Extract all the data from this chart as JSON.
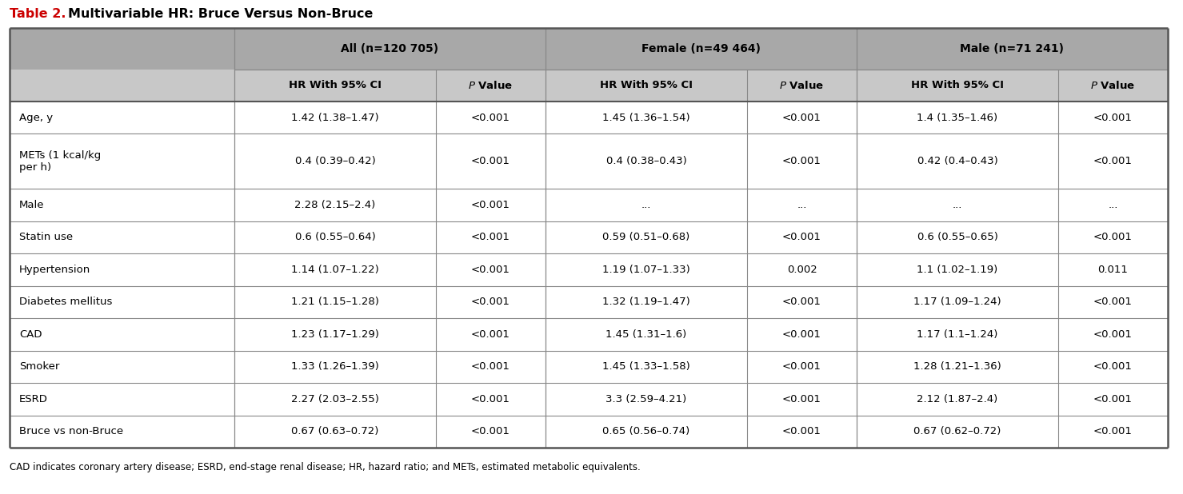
{
  "title_prefix": "Table 2.",
  "title_text": "Multivariable HR: Bruce Versus Non-Bruce",
  "title_prefix_color": "#cc0000",
  "title_text_color": "#000000",
  "col_groups": [
    {
      "label": "All (n=120 705)"
    },
    {
      "label": "Female (n=49 464)"
    },
    {
      "label": "Male (n=71 241)"
    }
  ],
  "col_headers": [
    "HR With 95% CI",
    "P Value",
    "HR With 95% CI",
    "P Value",
    "HR With 95% CI",
    "P Value"
  ],
  "row_labels": [
    "Age, y",
    "METs (1 kcal/kg\nper h)",
    "Male",
    "Statin use",
    "Hypertension",
    "Diabetes mellitus",
    "CAD",
    "Smoker",
    "ESRD",
    "Bruce vs non-Bruce"
  ],
  "data": [
    [
      "1.42 (1.38–1.47)",
      "<0.001",
      "1.45 (1.36–1.54)",
      "<0.001",
      "1.4 (1.35–1.46)",
      "<0.001"
    ],
    [
      "0.4 (0.39–0.42)",
      "<0.001",
      "0.4 (0.38–0.43)",
      "<0.001",
      "0.42 (0.4–0.43)",
      "<0.001"
    ],
    [
      "2.28 (2.15–2.4)",
      "<0.001",
      "...",
      "...",
      "...",
      "..."
    ],
    [
      "0.6 (0.55–0.64)",
      "<0.001",
      "0.59 (0.51–0.68)",
      "<0.001",
      "0.6 (0.55–0.65)",
      "<0.001"
    ],
    [
      "1.14 (1.07–1.22)",
      "<0.001",
      "1.19 (1.07–1.33)",
      "0.002",
      "1.1 (1.02–1.19)",
      "0.011"
    ],
    [
      "1.21 (1.15–1.28)",
      "<0.001",
      "1.32 (1.19–1.47)",
      "<0.001",
      "1.17 (1.09–1.24)",
      "<0.001"
    ],
    [
      "1.23 (1.17–1.29)",
      "<0.001",
      "1.45 (1.31–1.6)",
      "<0.001",
      "1.17 (1.1–1.24)",
      "<0.001"
    ],
    [
      "1.33 (1.26–1.39)",
      "<0.001",
      "1.45 (1.33–1.58)",
      "<0.001",
      "1.28 (1.21–1.36)",
      "<0.001"
    ],
    [
      "2.27 (2.03–2.55)",
      "<0.001",
      "3.3 (2.59–4.21)",
      "<0.001",
      "2.12 (1.87–2.4)",
      "<0.001"
    ],
    [
      "0.67 (0.63–0.72)",
      "<0.001",
      "0.65 (0.56–0.74)",
      "<0.001",
      "0.67 (0.62–0.72)",
      "<0.001"
    ]
  ],
  "footnote": "CAD indicates coronary artery disease; ESRD, end-stage renal disease; HR, hazard ratio; and METs, estimated metabolic equivalents.",
  "header_bg": "#a8a8a8",
  "subheader_bg": "#c8c8c8",
  "row_bg_white": "#ffffff",
  "border_color": "#888888",
  "outer_border_color": "#555555",
  "figsize": [
    14.79,
    6.18
  ],
  "dpi": 100
}
